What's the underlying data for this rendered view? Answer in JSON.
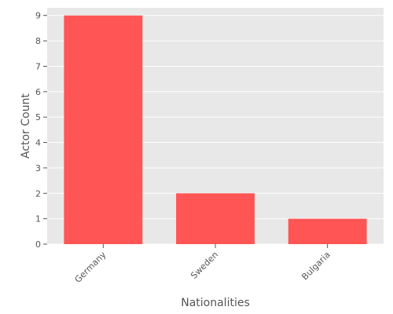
{
  "chart_data": {
    "type": "bar",
    "categories": [
      "Germany",
      "Sweden",
      "Bulgaria"
    ],
    "values": [
      9,
      2,
      1
    ],
    "xlabel": "Nationalities",
    "ylabel": "Actor Count",
    "ylim": [
      0,
      9.3
    ],
    "yticks": [
      0,
      1,
      2,
      3,
      4,
      5,
      6,
      7,
      8,
      9
    ],
    "grid": true,
    "legend": "none",
    "colors": {
      "bar": "#ff5555",
      "plot_background": "#e8e8e8",
      "grid": "#ffffff",
      "text": "#555555"
    }
  }
}
